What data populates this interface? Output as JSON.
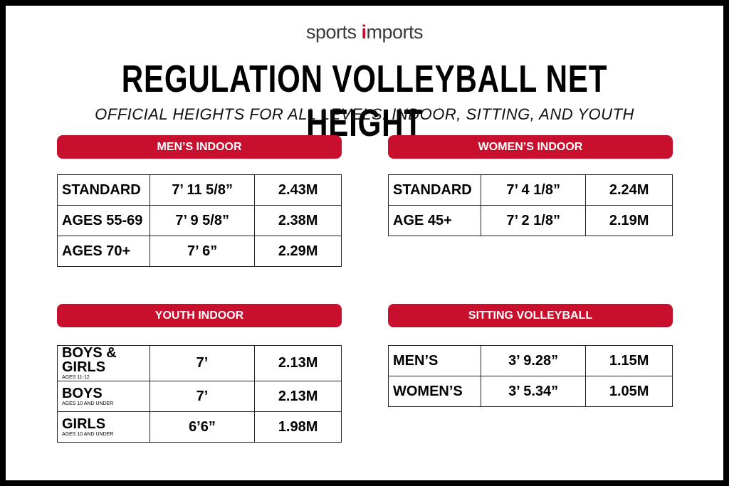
{
  "logo": {
    "first": "sports",
    "second": "imports"
  },
  "title": "REGULATION VOLLEYBALL NET HEIGHT",
  "subtitle": "OFFICIAL HEIGHTS FOR ALL LEVELS: INDOOR, SITTING, AND YOUTH",
  "sections": [
    {
      "title": "MEN’S INDOOR",
      "rows": [
        {
          "label": "STANDARD",
          "imperial": "7’ 11 5/8”",
          "metric": "2.43M"
        },
        {
          "label": "AGES 55-69",
          "imperial": "7’ 9 5/8”",
          "metric": "2.38M"
        },
        {
          "label": "AGES 70+",
          "imperial": "7’ 6”",
          "metric": "2.29M"
        }
      ]
    },
    {
      "title": "WOMEN’S INDOOR",
      "rows": [
        {
          "label": "STANDARD",
          "imperial": "7’ 4 1/8”",
          "metric": "2.24M"
        },
        {
          "label": "AGE 45+",
          "imperial": "7’ 2 1/8”",
          "metric": "2.19M"
        }
      ]
    },
    {
      "title": "YOUTH INDOOR",
      "rows": [
        {
          "label": "BOYS & GIRLS",
          "note": "AGES 11-12",
          "imperial": "7’",
          "metric": "2.13M"
        },
        {
          "label": "BOYS",
          "note": "AGES 10 AND UNDER",
          "imperial": "7’",
          "metric": "2.13M"
        },
        {
          "label": "GIRLS",
          "note": "AGES 10 AND UNDER",
          "imperial": "6’6”",
          "metric": "1.98M"
        }
      ]
    },
    {
      "title": "SITTING VOLLEYBALL",
      "rows": [
        {
          "label": "MEN’S",
          "imperial": "3’ 9.28”",
          "metric": "1.15M"
        },
        {
          "label": "WOMEN’S",
          "imperial": "3’ 5.34”",
          "metric": "1.05M"
        }
      ]
    }
  ]
}
